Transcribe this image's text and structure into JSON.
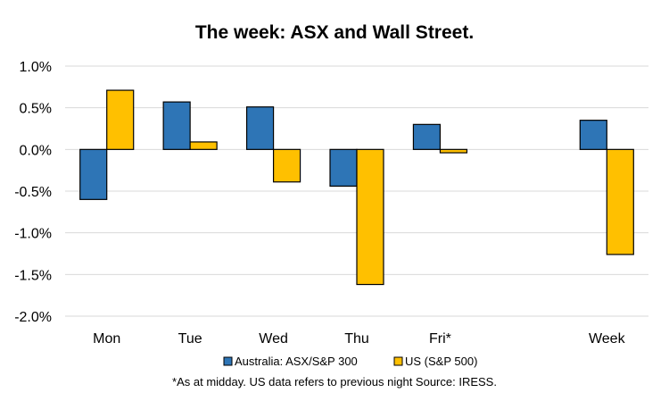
{
  "chart_data": {
    "type": "bar",
    "title": "The week:  ASX and Wall Street.",
    "categories": [
      "Mon",
      "Tue",
      "Wed",
      "Thu",
      "Fri*",
      "",
      "Week"
    ],
    "series": [
      {
        "name": "Australia: ASX/S&P 300",
        "color": "#2E75B6",
        "values": [
          -0.6,
          0.57,
          0.51,
          -0.44,
          0.3,
          null,
          0.35
        ]
      },
      {
        "name": "US (S&P 500)",
        "color": "#FFC000",
        "values": [
          0.71,
          0.09,
          -0.39,
          -1.62,
          -0.04,
          null,
          -1.26
        ]
      }
    ],
    "ylim": [
      -2.0,
      1.0
    ],
    "yticks": [
      1.0,
      0.5,
      0.0,
      -0.5,
      -1.0,
      -1.5,
      -2.0
    ],
    "ytick_labels": [
      "1.0%",
      "0.5%",
      "0.0%",
      "-0.5%",
      "-1.0%",
      "-1.5%",
      "-2.0%"
    ],
    "grid": true,
    "legend_position": "bottom",
    "xlabel": "",
    "ylabel": "",
    "footnote": "*As at midday. US data refers to previous night  Source:  IRESS."
  }
}
